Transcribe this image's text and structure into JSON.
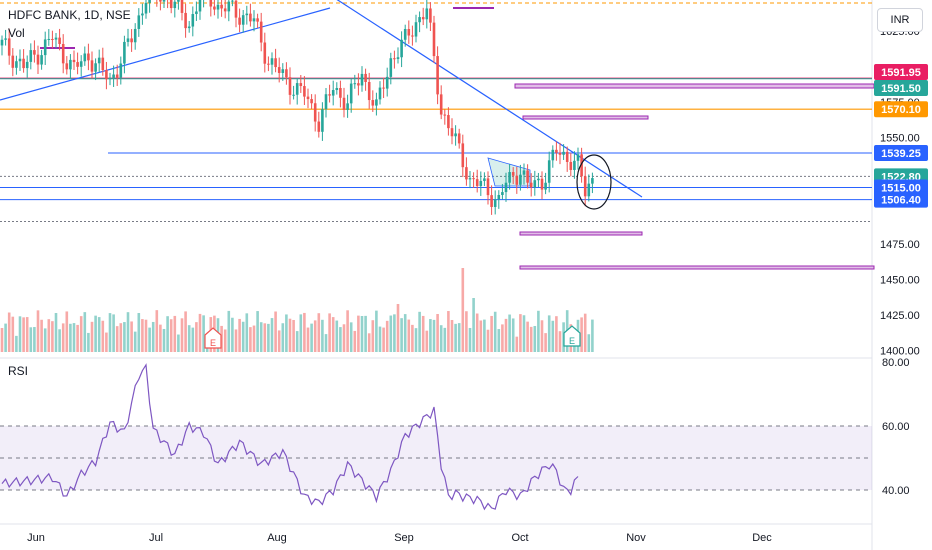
{
  "header": {
    "symbol": "HDFC BANK, 1D, NSE",
    "volume_label": "Vol"
  },
  "price_axis": {
    "currency": "INR",
    "ticks": [
      "1625.00",
      "1575.00",
      "1550.00",
      "1475.00",
      "1450.00",
      "1425.00",
      "1400.00"
    ]
  },
  "rsi_axis": {
    "label": "RSI",
    "ticks": [
      "80.00",
      "60.00",
      "40.00"
    ]
  },
  "time_axis": {
    "labels": [
      "Jun",
      "Jul",
      "Aug",
      "Sep",
      "Oct",
      "Nov",
      "Dec"
    ]
  },
  "price_tags": [
    {
      "value": 1591.95,
      "label": "1591.95",
      "color": "#e91e63"
    },
    {
      "value": 1591.5,
      "label": "1591.50",
      "color": "#26a69a"
    },
    {
      "value": 1570.1,
      "label": "1570.10",
      "color": "#ff9800"
    },
    {
      "value": 1539.25,
      "label": "1539.25",
      "color": "#2962ff"
    },
    {
      "value": 1522.8,
      "label": "1522.80",
      "color": "#26a69a"
    },
    {
      "value": 1515.0,
      "label": "1515.00",
      "color": "#2962ff"
    },
    {
      "value": 1506.4,
      "label": "1506.40",
      "color": "#2962ff"
    }
  ],
  "colors": {
    "up": "#26a69a",
    "down": "#ef5350",
    "accent": "#2962ff",
    "zone": "#9c27b0"
  },
  "icons": [
    "earnings-marker-icon",
    "circle-annotation-icon"
  ],
  "chart_data": {
    "type": "candlestick",
    "title": "HDFC BANK, 1D, NSE",
    "ylim": [
      1397,
      1647
    ],
    "x_labels": [
      "Jun",
      "Jul",
      "Aug",
      "Sep",
      "Oct",
      "Nov",
      "Dec"
    ],
    "series": [
      {
        "name": "HDFC BANK",
        "anchors": [
          [
            0,
            1615
          ],
          [
            6,
            1600
          ],
          [
            14,
            1620
          ],
          [
            20,
            1598
          ],
          [
            24,
            1608
          ],
          [
            30,
            1590
          ],
          [
            36,
            1620
          ],
          [
            40,
            1650
          ],
          [
            46,
            1650
          ],
          [
            52,
            1630
          ],
          [
            56,
            1655
          ],
          [
            60,
            1642
          ],
          [
            64,
            1640
          ],
          [
            70,
            1632
          ],
          [
            74,
            1604
          ],
          [
            80,
            1588
          ],
          [
            84,
            1580
          ],
          [
            88,
            1562
          ],
          [
            92,
            1585
          ],
          [
            96,
            1575
          ],
          [
            100,
            1595
          ],
          [
            104,
            1570
          ],
          [
            108,
            1605
          ],
          [
            112,
            1618
          ],
          [
            115,
            1632
          ],
          [
            118,
            1640
          ],
          [
            122,
            1570
          ],
          [
            124,
            1558
          ],
          [
            128,
            1535
          ],
          [
            130,
            1520
          ],
          [
            134,
            1515
          ],
          [
            138,
            1505
          ],
          [
            140,
            1518
          ],
          [
            144,
            1528
          ],
          [
            146,
            1515
          ],
          [
            150,
            1520
          ],
          [
            154,
            1540
          ],
          [
            158,
            1535
          ],
          [
            160,
            1530
          ],
          [
            162,
            1512
          ],
          [
            164,
            1522
          ]
        ]
      },
      {
        "name": "Vol",
        "scale": [
          0,
          10
        ]
      },
      {
        "name": "RSI",
        "ylim": [
          30,
          80
        ],
        "anchors": [
          [
            0,
            42
          ],
          [
            8,
            43
          ],
          [
            14,
            44
          ],
          [
            18,
            38
          ],
          [
            22,
            45
          ],
          [
            26,
            49
          ],
          [
            30,
            61
          ],
          [
            34,
            58
          ],
          [
            38,
            76
          ],
          [
            40,
            78
          ],
          [
            42,
            59
          ],
          [
            48,
            51
          ],
          [
            52,
            60
          ],
          [
            56,
            58
          ],
          [
            60,
            48
          ],
          [
            66,
            55
          ],
          [
            72,
            48
          ],
          [
            78,
            52
          ],
          [
            84,
            38
          ],
          [
            88,
            36
          ],
          [
            92,
            40
          ],
          [
            96,
            48
          ],
          [
            100,
            43
          ],
          [
            104,
            38
          ],
          [
            108,
            46
          ],
          [
            112,
            57
          ],
          [
            116,
            61
          ],
          [
            118,
            63
          ],
          [
            120,
            65
          ],
          [
            122,
            48
          ],
          [
            124,
            38
          ],
          [
            126,
            39
          ],
          [
            128,
            38
          ],
          [
            132,
            37
          ],
          [
            136,
            34
          ],
          [
            140,
            40
          ],
          [
            144,
            38
          ],
          [
            148,
            44
          ],
          [
            152,
            48
          ],
          [
            154,
            46
          ],
          [
            156,
            40
          ],
          [
            158,
            40
          ],
          [
            160,
            44
          ]
        ]
      }
    ],
    "levels": [
      1591.95,
      1591.5,
      1570.1,
      1539.25,
      1522.8,
      1515.0,
      1506.4
    ],
    "rsi_levels": [
      60,
      50,
      40
    ],
    "bars": 165
  }
}
